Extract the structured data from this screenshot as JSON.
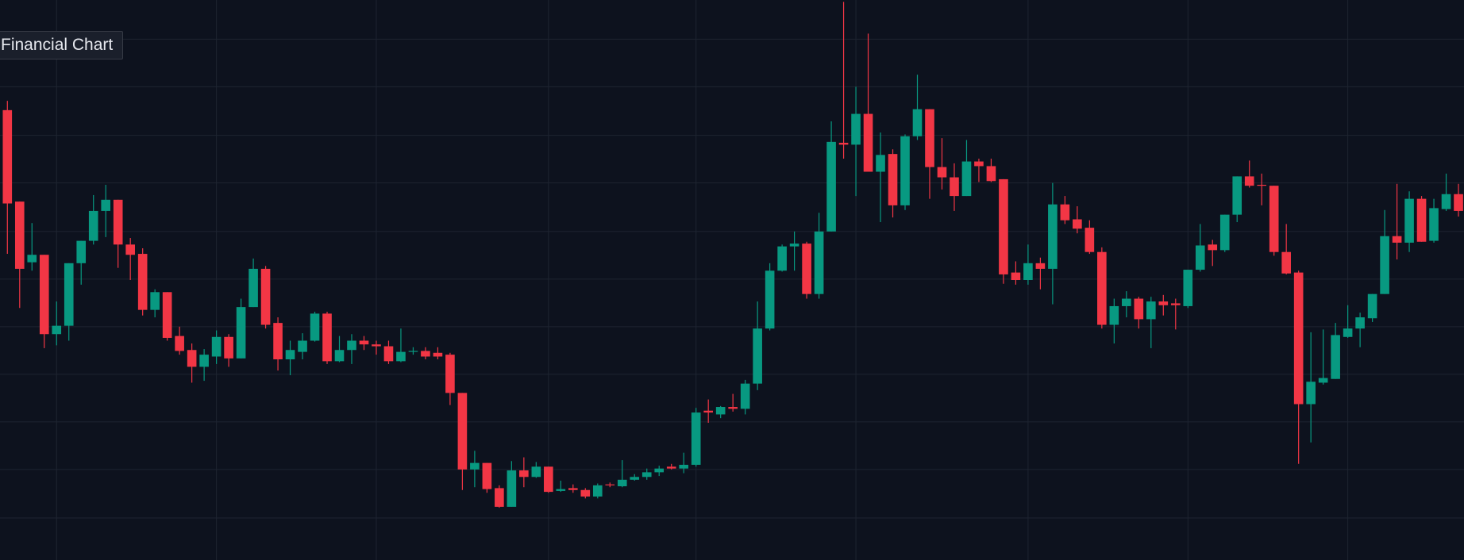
{
  "chart_data": {
    "type": "candlestick",
    "title": "Financial Chart",
    "up_color": "#089981",
    "down_color": "#f23645",
    "grid_color": "#1e2431",
    "background": "#0d121e",
    "grid": true,
    "ylim": [
      0,
      600
    ],
    "yticks": [
      558,
      507,
      455,
      404,
      352,
      301,
      250,
      199,
      148,
      97,
      45
    ],
    "xlim": [
      -0.6,
      118.45
    ],
    "xticks": [
      4,
      17,
      30,
      44,
      56,
      69,
      83,
      96,
      109
    ],
    "open": [
      482,
      384,
      319,
      327,
      242,
      251,
      318,
      342,
      374,
      386,
      338,
      328,
      268,
      287,
      240,
      225,
      207,
      218,
      239,
      216,
      271,
      312,
      254,
      215,
      223,
      235,
      264,
      213,
      225,
      235,
      231,
      229,
      213,
      223,
      224,
      222,
      220,
      179,
      97,
      104,
      77,
      57,
      96,
      89,
      100,
      74,
      77,
      75,
      68,
      81,
      79,
      86,
      89,
      94,
      100,
      98,
      102,
      160,
      156,
      164,
      162,
      189,
      248,
      310,
      336,
      339,
      285,
      352,
      447,
      445,
      478,
      416,
      435,
      380,
      454,
      483,
      421,
      410,
      390,
      427,
      422,
      408,
      308,
      300,
      318,
      312,
      381,
      365,
      356,
      330,
      252,
      272,
      280,
      258,
      277,
      275,
      272,
      311,
      338,
      332,
      370,
      411,
      402,
      401,
      330,
      308,
      167,
      190,
      194,
      239,
      248,
      259,
      285,
      347,
      340,
      387,
      342,
      376,
      392
    ],
    "high": [
      492,
      384,
      361,
      327,
      277,
      318,
      342,
      391,
      402,
      386,
      345,
      334,
      290,
      287,
      250,
      232,
      226,
      246,
      242,
      280,
      323,
      315,
      260,
      235,
      243,
      266,
      266,
      240,
      242,
      240,
      235,
      235,
      248,
      228,
      228,
      228,
      222,
      179,
      117,
      104,
      80,
      106,
      110,
      105,
      100,
      85,
      81,
      77,
      82,
      83,
      107,
      92,
      98,
      101,
      103,
      115,
      163,
      172,
      165,
      178,
      193,
      277,
      318,
      338,
      352,
      341,
      372,
      470,
      598,
      507,
      564,
      458,
      440,
      456,
      520,
      483,
      452,
      425,
      450,
      430,
      430,
      408,
      320,
      338,
      324,
      404,
      390,
      379,
      364,
      335,
      280,
      288,
      282,
      282,
      284,
      280,
      311,
      360,
      343,
      370,
      411,
      428,
      414,
      401,
      360,
      310,
      244,
      247,
      254,
      273,
      265,
      285,
      375,
      403,
      395,
      390,
      387,
      414,
      403
    ],
    "low": [
      328,
      270,
      310,
      227,
      230,
      235,
      295,
      338,
      346,
      313,
      300,
      262,
      260,
      235,
      220,
      190,
      192,
      210,
      207,
      216,
      271,
      248,
      203,
      198,
      215,
      234,
      210,
      212,
      210,
      225,
      220,
      210,
      212,
      220,
      215,
      215,
      166,
      75,
      78,
      72,
      56,
      57,
      78,
      88,
      72,
      73,
      72,
      66,
      66,
      78,
      78,
      85,
      86,
      90,
      97,
      93,
      100,
      147,
      152,
      159,
      156,
      182,
      246,
      309,
      310,
      280,
      280,
      352,
      430,
      390,
      416,
      362,
      367,
      375,
      450,
      387,
      397,
      374,
      390,
      405,
      405,
      296,
      295,
      295,
      290,
      274,
      360,
      350,
      328,
      248,
      232,
      260,
      248,
      227,
      262,
      247,
      270,
      309,
      315,
      330,
      362,
      399,
      380,
      326,
      306,
      103,
      126,
      188,
      194,
      238,
      228,
      255,
      285,
      322,
      330,
      341,
      340,
      374,
      368
    ],
    "close": [
      382,
      312,
      327,
      242,
      251,
      318,
      342,
      374,
      386,
      338,
      327,
      268,
      287,
      238,
      224,
      207,
      220,
      239,
      216,
      271,
      312,
      252,
      215,
      225,
      235,
      264,
      213,
      225,
      235,
      231,
      229,
      213,
      223,
      224,
      218,
      218,
      179,
      97,
      104,
      76,
      57,
      96,
      89,
      100,
      73,
      76,
      75,
      68,
      80,
      80,
      86,
      89,
      94,
      98,
      98,
      102,
      158,
      158,
      164,
      162,
      189,
      248,
      310,
      336,
      339,
      285,
      352,
      448,
      445,
      478,
      416,
      434,
      380,
      454,
      483,
      421,
      410,
      390,
      427,
      422,
      406,
      306,
      300,
      318,
      312,
      381,
      364,
      355,
      330,
      252,
      272,
      280,
      258,
      277,
      273,
      273,
      311,
      337,
      332,
      370,
      411,
      401,
      401,
      330,
      307,
      167,
      191,
      195,
      241,
      248,
      260,
      285,
      347,
      340,
      387,
      341,
      377,
      392,
      374
    ]
  }
}
